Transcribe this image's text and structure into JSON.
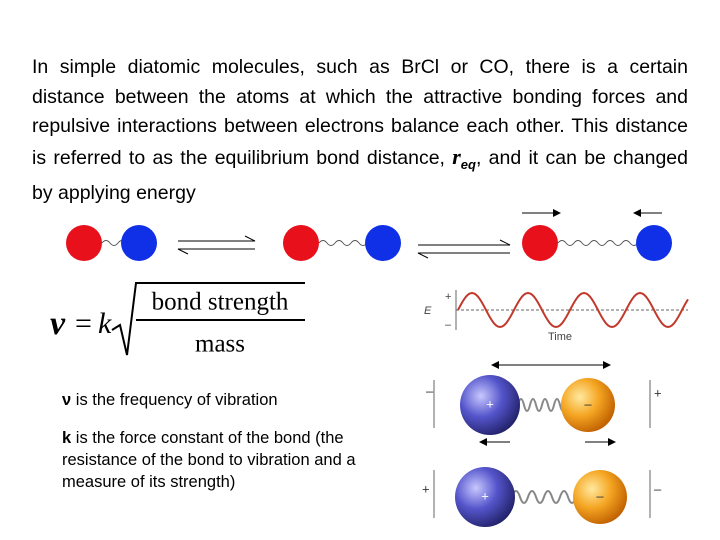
{
  "paragraph": {
    "before": "In simple diatomic molecules, such as BrCl or CO, there is a certain distance between the atoms at which the attractive bonding forces and repulsive interactions between electrons balance each other. This distance is referred to as the equilibrium bond distance, ",
    "symbol": "r",
    "subscript": "eq",
    "after": ", and it can be changed by applying energy"
  },
  "equation": {
    "lhs": "ν",
    "equals": "=",
    "constant": "k",
    "numerator": "bond strength",
    "denominator": "mass"
  },
  "notes": [
    {
      "symbol": "ν",
      "text": " is the frequency of vibration"
    },
    {
      "symbol": "k",
      "text": " is the force constant of the bond (the resistance of the bond to vibration and a measure of its strength)"
    }
  ],
  "wave_plot": {
    "y_label": "E",
    "x_label": "Time",
    "plus": "+",
    "minus": "–"
  },
  "spring_diagram": {
    "top": {
      "left_plate": "–",
      "left_ball": "+",
      "right_ball": "–",
      "right_plate": "+"
    },
    "bottom": {
      "left_plate": "+",
      "left_ball": "+",
      "right_ball": "–",
      "right_plate": "–"
    }
  }
}
